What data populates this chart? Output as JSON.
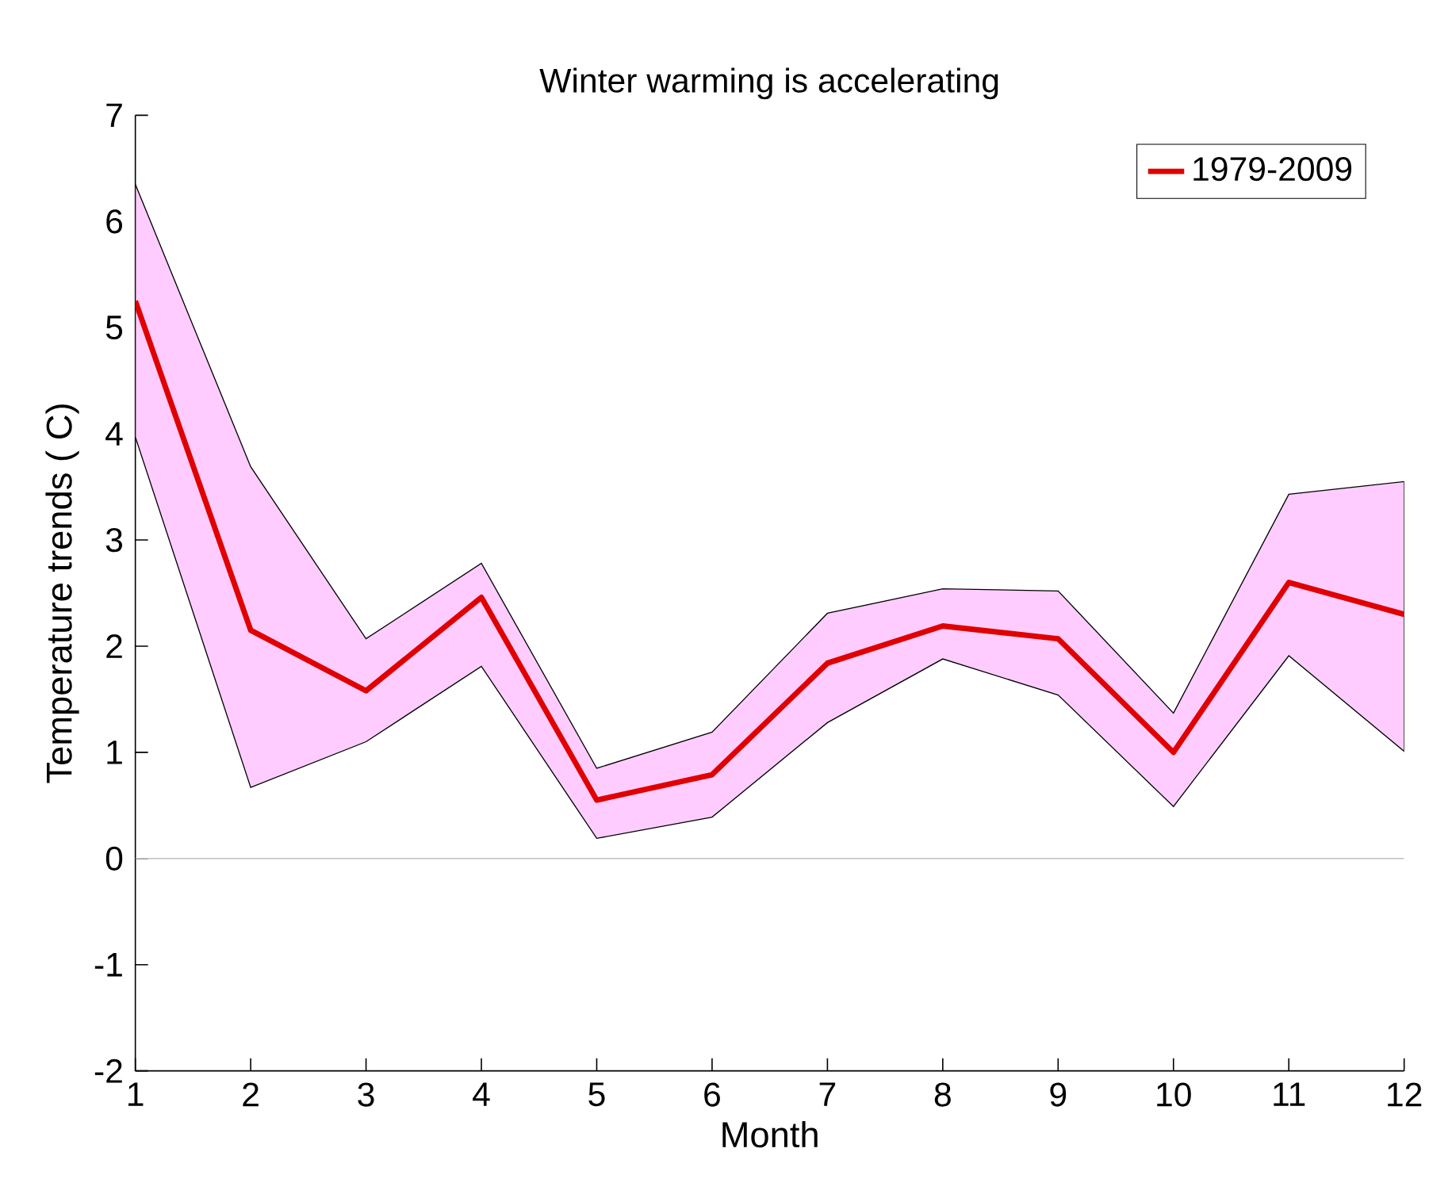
{
  "chart_data": {
    "type": "line",
    "title": "Winter warming is accelerating",
    "xlabel": "Month",
    "ylabel": "Temperature trends ( C)",
    "x": [
      1,
      2,
      3,
      4,
      5,
      6,
      7,
      8,
      9,
      10,
      11,
      12
    ],
    "series": [
      {
        "name": "1979-2009",
        "color": "#e00000",
        "values": [
          5.25,
          2.15,
          1.58,
          2.46,
          0.55,
          0.79,
          1.84,
          2.19,
          2.07,
          1.0,
          2.6,
          2.3
        ],
        "lower": [
          3.97,
          0.67,
          1.1,
          1.81,
          0.19,
          0.39,
          1.28,
          1.88,
          1.54,
          0.49,
          1.91,
          1.01
        ],
        "upper": [
          6.35,
          3.69,
          2.07,
          2.78,
          0.85,
          1.19,
          2.31,
          2.54,
          2.52,
          1.37,
          3.43,
          3.55
        ]
      }
    ],
    "xlim": [
      1,
      12
    ],
    "ylim": [
      -2,
      7
    ],
    "xticks": [
      1,
      2,
      3,
      4,
      5,
      6,
      7,
      8,
      9,
      10,
      11,
      12
    ],
    "yticks": [
      -2,
      -1,
      0,
      1,
      2,
      3,
      4,
      5,
      6,
      7
    ],
    "ref_lines": [
      {
        "axis": "y",
        "value": 0,
        "color": "#c0c0c0"
      }
    ],
    "legend": "top right",
    "line_style": "solid"
  }
}
